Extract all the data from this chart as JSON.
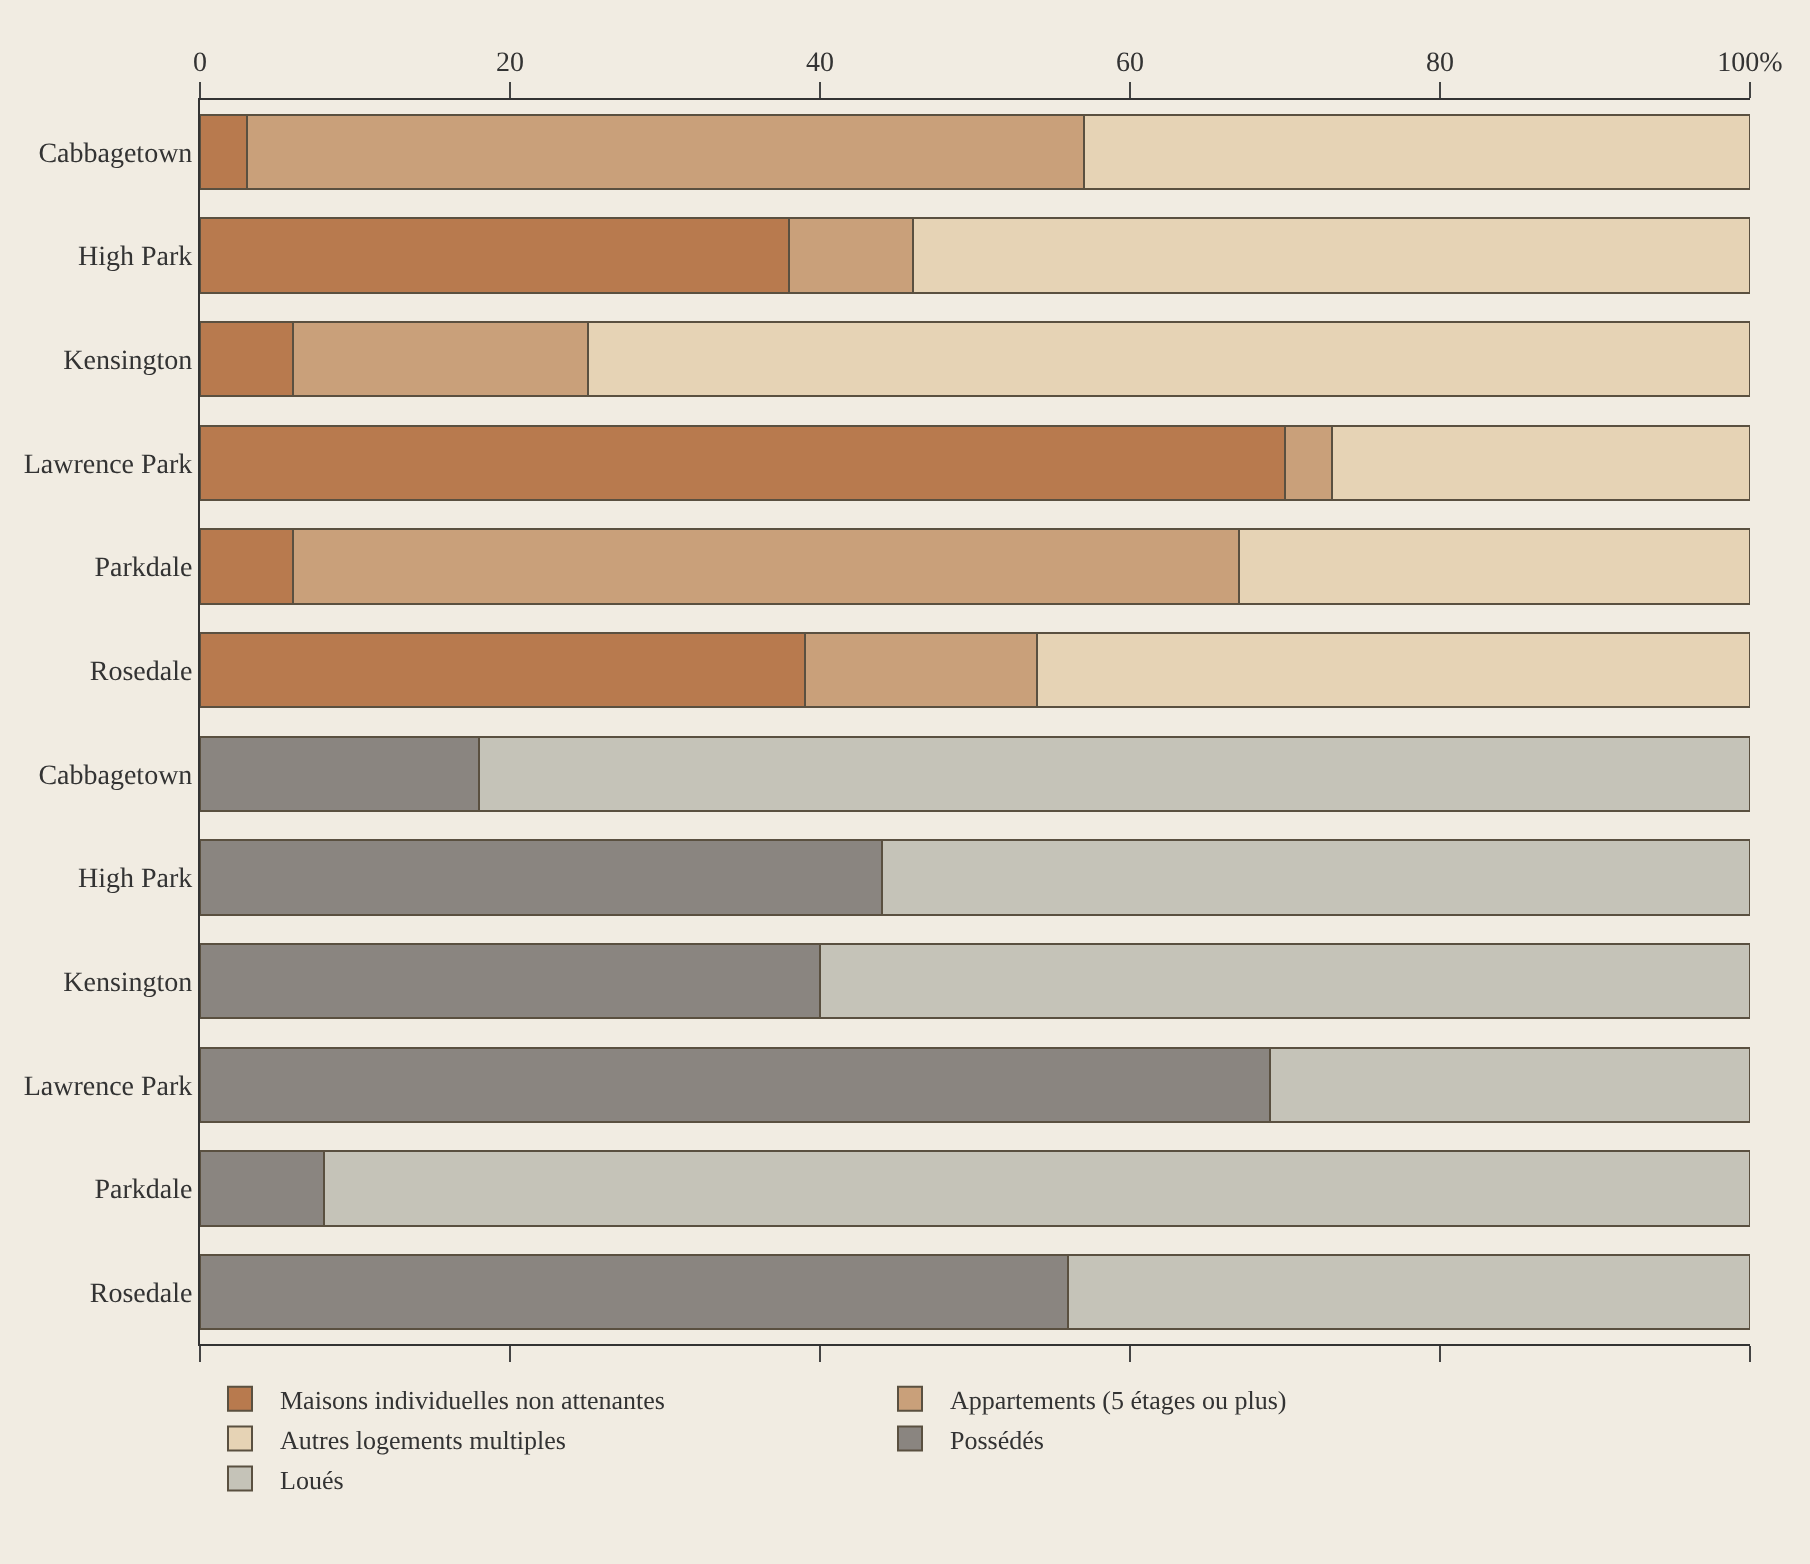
{
  "chart_data": {
    "type": "bar",
    "orientation": "horizontal",
    "stacked": true,
    "categories": [
      "Cabbagetown",
      "High Park",
      "Kensington",
      "Lawrence Park",
      "Parkdale",
      "Rosedale",
      "Cabbagetown",
      "High Park",
      "Kensington",
      "Lawrence Park",
      "Parkdale",
      "Rosedale"
    ],
    "series": [
      {
        "name": "Maisons individuelles non attenantes",
        "color": "#b87a4e",
        "values": [
          3,
          38,
          6,
          70,
          6,
          39,
          null,
          null,
          null,
          null,
          null,
          null
        ]
      },
      {
        "name": "Appartements (5 étages ou plus)",
        "color": "#c9a07a",
        "values": [
          54,
          8,
          19,
          3,
          61,
          15,
          null,
          null,
          null,
          null,
          null,
          null
        ]
      },
      {
        "name": "Autres logements multiples",
        "color": "#e6d3b5",
        "values": [
          43,
          54,
          75,
          27,
          33,
          46,
          null,
          null,
          null,
          null,
          null,
          null
        ]
      },
      {
        "name": "Possédés",
        "color": "#8a8580",
        "values": [
          null,
          null,
          null,
          null,
          null,
          null,
          18,
          44,
          40,
          69,
          8,
          56
        ]
      },
      {
        "name": "Loués",
        "color": "#c5c3b8",
        "values": [
          null,
          null,
          null,
          null,
          null,
          null,
          82,
          56,
          60,
          31,
          92,
          44
        ]
      }
    ],
    "xlim": [
      0,
      100
    ],
    "xticks": [
      0,
      20,
      40,
      60,
      80,
      {
        "value": 100,
        "label": "100%"
      }
    ],
    "grid": false,
    "legend": "bottom"
  }
}
